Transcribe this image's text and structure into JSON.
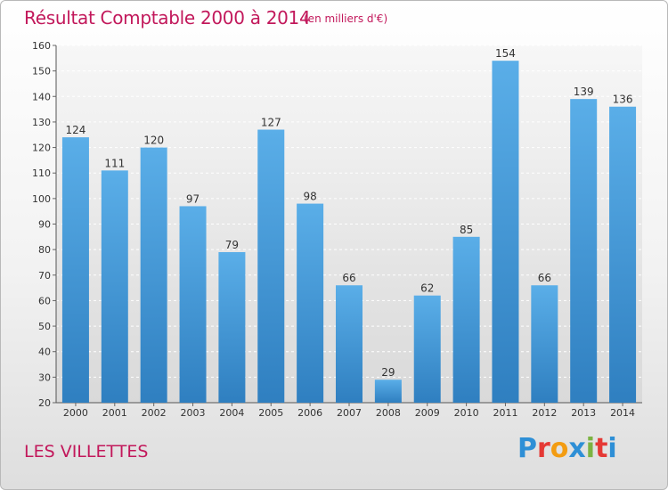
{
  "header": {
    "title": "Résultat Comptable 2000 à 2014",
    "subtitle": "(en milliers d'€)"
  },
  "footer": {
    "place": "LES VILLETTES",
    "logo_text": "Proxiti",
    "logo_colors": [
      "#2e8fd6",
      "#e53935",
      "#f39c12",
      "#2e8fd6",
      "#7cb342",
      "#e53935",
      "#2e8fd6"
    ]
  },
  "chart_data": {
    "type": "bar",
    "title": "Résultat Comptable 2000 à 2014",
    "subtitle": "(en milliers d'€)",
    "xlabel": "",
    "ylabel": "",
    "categories": [
      "2000",
      "2001",
      "2002",
      "2003",
      "2004",
      "2005",
      "2006",
      "2007",
      "2008",
      "2009",
      "2010",
      "2011",
      "2012",
      "2013",
      "2014"
    ],
    "values": [
      124,
      111,
      120,
      97,
      79,
      127,
      98,
      66,
      29,
      62,
      85,
      154,
      66,
      139,
      136
    ],
    "ylim": [
      20,
      160
    ],
    "yticks": [
      20,
      30,
      40,
      50,
      60,
      70,
      80,
      90,
      100,
      110,
      120,
      130,
      140,
      150,
      160
    ],
    "grid": true,
    "bar_color_top": "#5aaee8",
    "bar_color_bottom": "#2f7fc0"
  }
}
